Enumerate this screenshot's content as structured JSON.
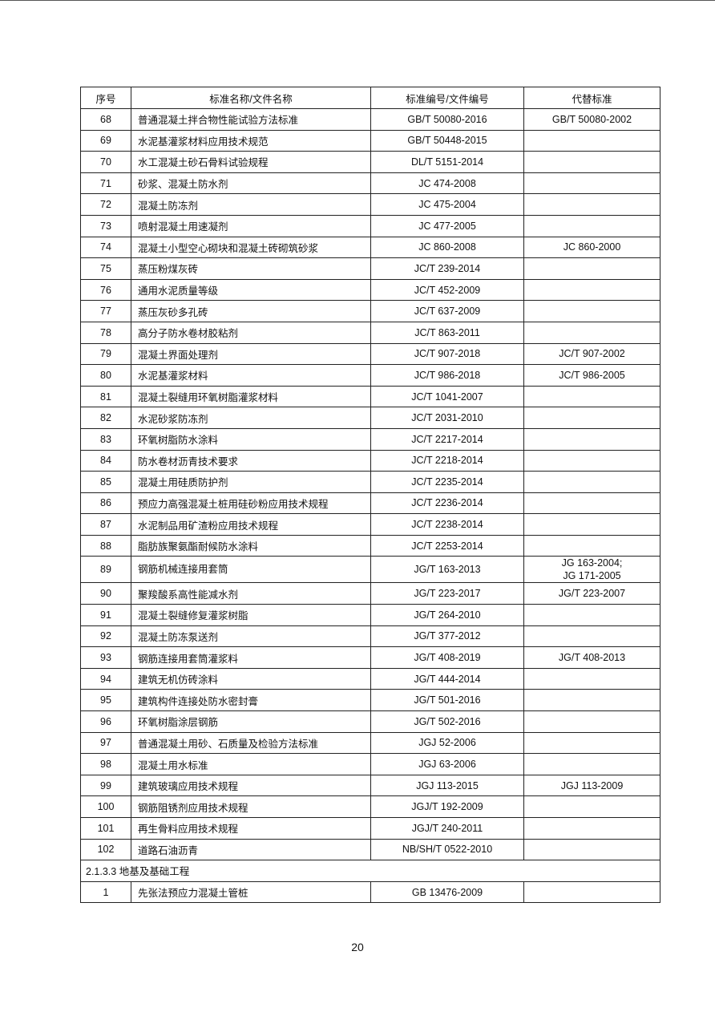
{
  "table": {
    "headers": [
      "序号",
      "标准名称/文件名称",
      "标准编号/文件编号",
      "代替标准"
    ],
    "rows": [
      [
        "68",
        "普通混凝土拌合物性能试验方法标准",
        "GB/T 50080-2016",
        "GB/T 50080-2002"
      ],
      [
        "69",
        "水泥基灌浆材料应用技术规范",
        "GB/T 50448-2015",
        ""
      ],
      [
        "70",
        "水工混凝土砂石骨料试验规程",
        "DL/T 5151-2014",
        ""
      ],
      [
        "71",
        "砂浆、混凝土防水剂",
        "JC 474-2008",
        ""
      ],
      [
        "72",
        "混凝土防冻剂",
        "JC 475-2004",
        ""
      ],
      [
        "73",
        "喷射混凝土用速凝剂",
        "JC 477-2005",
        ""
      ],
      [
        "74",
        "混凝土小型空心砌块和混凝土砖砌筑砂浆",
        "JC 860-2008",
        "JC 860-2000"
      ],
      [
        "75",
        "蒸压粉煤灰砖",
        "JC/T 239-2014",
        ""
      ],
      [
        "76",
        "通用水泥质量等级",
        "JC/T 452-2009",
        ""
      ],
      [
        "77",
        "蒸压灰砂多孔砖",
        "JC/T 637-2009",
        ""
      ],
      [
        "78",
        "高分子防水卷材胶粘剂",
        "JC/T 863-2011",
        ""
      ],
      [
        "79",
        "混凝土界面处理剂",
        "JC/T 907-2018",
        "JC/T 907-2002"
      ],
      [
        "80",
        "水泥基灌浆材料",
        "JC/T 986-2018",
        "JC/T 986-2005"
      ],
      [
        "81",
        "混凝土裂缝用环氧树脂灌浆材料",
        "JC/T 1041-2007",
        ""
      ],
      [
        "82",
        "水泥砂浆防冻剂",
        "JC/T 2031-2010",
        ""
      ],
      [
        "83",
        "环氧树脂防水涂料",
        "JC/T 2217-2014",
        ""
      ],
      [
        "84",
        "防水卷材沥青技术要求",
        "JC/T 2218-2014",
        ""
      ],
      [
        "85",
        "混凝土用硅质防护剂",
        "JC/T 2235-2014",
        ""
      ],
      [
        "86",
        "预应力高强混凝土桩用硅砂粉应用技术规程",
        "JC/T 2236-2014",
        ""
      ],
      [
        "87",
        "水泥制品用矿渣粉应用技术规程",
        "JC/T 2238-2014",
        ""
      ],
      [
        "88",
        "脂肪族聚氨酯耐候防水涂料",
        "JC/T 2253-2014",
        ""
      ],
      [
        "89",
        "钢筋机械连接用套筒",
        "JG/T 163-2013",
        "JG 163-2004;\nJG 171-2005"
      ],
      [
        "90",
        "聚羧酸系高性能减水剂",
        "JG/T 223-2017",
        "JG/T 223-2007"
      ],
      [
        "91",
        "混凝土裂缝修复灌浆树脂",
        "JG/T 264-2010",
        ""
      ],
      [
        "92",
        "混凝土防冻泵送剂",
        "JG/T 377-2012",
        ""
      ],
      [
        "93",
        "钢筋连接用套筒灌浆料",
        "JG/T 408-2019",
        "JG/T 408-2013"
      ],
      [
        "94",
        "建筑无机仿砖涂料",
        "JG/T 444-2014",
        ""
      ],
      [
        "95",
        "建筑构件连接处防水密封膏",
        "JG/T 501-2016",
        ""
      ],
      [
        "96",
        "环氧树脂涂层钢筋",
        "JG/T 502-2016",
        ""
      ],
      [
        "97",
        "普通混凝土用砂、石质量及检验方法标准",
        "JGJ 52-2006",
        ""
      ],
      [
        "98",
        "混凝土用水标准",
        "JGJ 63-2006",
        ""
      ],
      [
        "99",
        "建筑玻璃应用技术规程",
        "JGJ 113-2015",
        "JGJ 113-2009"
      ],
      [
        "100",
        "钢筋阻锈剂应用技术规程",
        "JGJ/T 192-2009",
        ""
      ],
      [
        "101",
        "再生骨料应用技术规程",
        "JGJ/T 240-2011",
        ""
      ],
      [
        "102",
        "道路石油沥青",
        "NB/SH/T 0522-2010",
        ""
      ]
    ],
    "section_title": "2.1.3.3 地基及基础工程",
    "section_rows": [
      [
        "1",
        "先张法预应力混凝土管桩",
        "GB 13476-2009",
        ""
      ]
    ]
  },
  "page_number": "20"
}
